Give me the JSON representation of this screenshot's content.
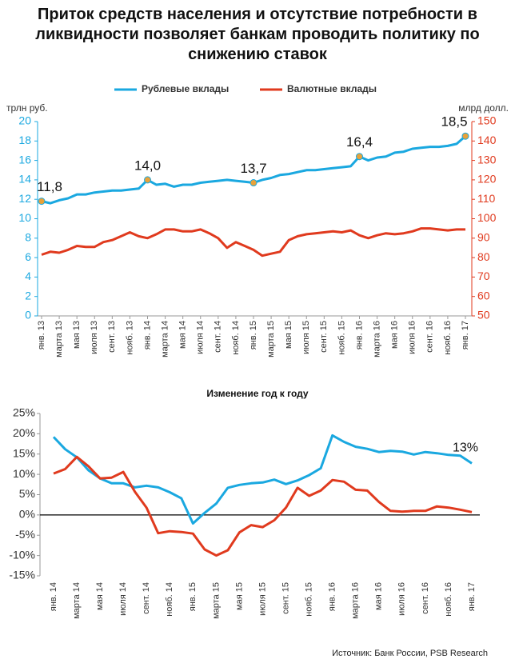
{
  "chart_data": [
    {
      "type": "line",
      "title": "Приток средств населения и отсутствие потребности в ликвидности позволяет банкам проводить политику по снижению ставок",
      "y_label": "трлн руб.",
      "y2_label": "млрд долл.",
      "categories": [
        "янв. 13",
        null,
        "марта 13",
        null,
        "мая 13",
        null,
        "июля 13",
        null,
        "сент. 13",
        null,
        "нояб. 13",
        null,
        "янв. 14",
        null,
        "марта 14",
        null,
        "мая 14",
        null,
        "июля 14",
        null,
        "сент. 14",
        null,
        "нояб. 14",
        null,
        "янв. 15",
        null,
        "марта 15",
        null,
        "мая 15",
        null,
        "июля 15",
        null,
        "сент. 15",
        null,
        "нояб. 15",
        null,
        "янв. 16",
        null,
        "марта 16",
        null,
        "мая 16",
        null,
        "июля 16",
        null,
        "сент. 16",
        null,
        "нояб. 16",
        null,
        "янв. 17"
      ],
      "ylim": [
        0,
        20
      ],
      "yticks": [
        0,
        2,
        4,
        6,
        8,
        10,
        12,
        14,
        16,
        18,
        20
      ],
      "y2lim": [
        50,
        150
      ],
      "y2ticks": [
        50,
        60,
        70,
        80,
        90,
        100,
        110,
        120,
        130,
        140,
        150
      ],
      "legend": "top",
      "series": [
        {
          "name": "Рублевые вклады",
          "color": "#1aa8e0",
          "values": [
            11.8,
            11.6,
            11.9,
            12.1,
            12.5,
            12.5,
            12.7,
            12.8,
            12.9,
            12.9,
            13.0,
            13.1,
            14.0,
            13.5,
            13.6,
            13.3,
            13.5,
            13.5,
            13.7,
            13.8,
            13.9,
            14.0,
            13.9,
            13.8,
            13.7,
            14.0,
            14.2,
            14.5,
            14.6,
            14.8,
            15.0,
            15.0,
            15.1,
            15.2,
            15.3,
            15.4,
            16.4,
            16.0,
            16.3,
            16.4,
            16.8,
            16.9,
            17.2,
            17.3,
            17.4,
            17.4,
            17.5,
            17.7,
            18.5
          ],
          "value_labels": [
            "11,8",
            null,
            null,
            null,
            null,
            null,
            null,
            null,
            null,
            null,
            null,
            null,
            "14,0",
            null,
            null,
            null,
            null,
            null,
            null,
            null,
            null,
            null,
            null,
            null,
            "13,7",
            null,
            null,
            null,
            null,
            null,
            null,
            null,
            null,
            null,
            null,
            null,
            "16,4",
            null,
            null,
            null,
            null,
            null,
            null,
            null,
            null,
            null,
            null,
            null,
            "18,5"
          ]
        },
        {
          "name": "Валютные вклады",
          "color": "#e03a1e",
          "axis": "y2",
          "values": [
            81.5,
            83,
            82.5,
            84,
            86,
            85.5,
            85.5,
            88,
            89,
            91,
            93,
            91,
            90,
            92,
            94.5,
            94.5,
            93.5,
            93.5,
            94.5,
            92.5,
            90,
            85,
            88,
            86,
            84,
            81,
            82,
            83,
            89,
            91,
            92,
            92.5,
            93,
            93.5,
            93,
            94,
            91.5,
            90,
            91.5,
            92.5,
            92,
            92.5,
            93.5,
            95,
            95,
            94.5,
            94,
            94.5,
            94.5
          ]
        }
      ]
    },
    {
      "type": "line",
      "title": "Изменение год к году",
      "annotation": "13%",
      "source": "Источник: Банк России, PSB Research",
      "categories": [
        "янв. 14",
        null,
        "марта 14",
        null,
        "мая 14",
        null,
        "июля 14",
        null,
        "сент. 14",
        null,
        "нояб. 14",
        null,
        "янв. 15",
        null,
        "марта 15",
        null,
        "мая 15",
        null,
        "июля 15",
        null,
        "сент. 15",
        null,
        "нояб. 15",
        null,
        "янв. 16",
        null,
        "марта 16",
        null,
        "мая 16",
        null,
        "июля 16",
        null,
        "сент. 16",
        null,
        "нояб. 16",
        null,
        "янв. 17"
      ],
      "ylim": [
        -15,
        25
      ],
      "yticks": [
        {
          "value": -15,
          "label": "-15%"
        },
        {
          "value": -10,
          "label": "-10%"
        },
        {
          "value": -5,
          "label": "-5%"
        },
        {
          "value": 0,
          "label": "0%"
        },
        {
          "value": 5,
          "label": "5%"
        },
        {
          "value": 10,
          "label": "10%"
        },
        {
          "value": 15,
          "label": "15%"
        },
        {
          "value": 20,
          "label": "20%"
        },
        {
          "value": 25,
          "label": "25%"
        }
      ],
      "series": [
        {
          "color": "#1aa8e0",
          "values": [
            19.2,
            16.2,
            14.2,
            11,
            9,
            7.8,
            7.8,
            6.8,
            7.2,
            6.8,
            5.6,
            4.1,
            -2.1,
            0.5,
            2.8,
            6.7,
            7.4,
            7.8,
            8,
            8.7,
            7.6,
            8.5,
            9.8,
            11.5,
            19.6,
            18,
            16.8,
            16.3,
            15.5,
            15.8,
            15.6,
            14.9,
            15.5,
            15.2,
            14.8,
            14.6,
            12.7
          ]
        },
        {
          "color": "#e03a1e",
          "values": [
            10.2,
            11.3,
            14.3,
            12,
            9,
            9.2,
            10.6,
            5.7,
            1.8,
            -4.5,
            -4,
            -4.2,
            -4.6,
            -8.5,
            -10,
            -8.7,
            -4.3,
            -2.5,
            -3,
            -1.3,
            1.8,
            6.7,
            4.7,
            6,
            8.6,
            8.2,
            6.2,
            6,
            3.2,
            1,
            0.8,
            1,
            1,
            2.1,
            1.8,
            1.3,
            0.7
          ]
        }
      ]
    }
  ]
}
